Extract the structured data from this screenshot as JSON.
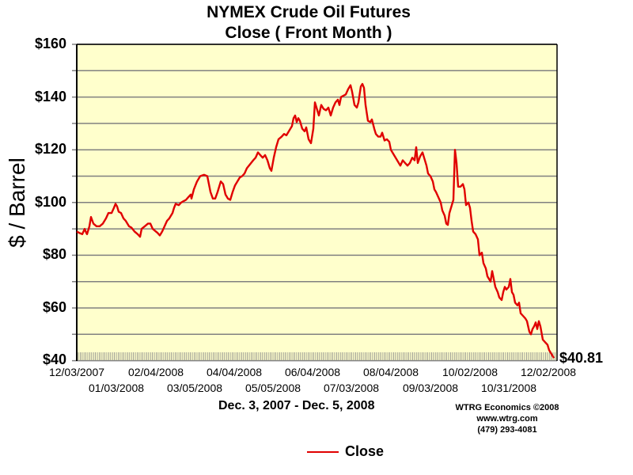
{
  "header": {
    "title_line1": "NYMEX Crude Oil Futures",
    "title_line2": "Close ( Front Month )"
  },
  "axes": {
    "ylabel": "$ / Barrel",
    "yticks": [
      "$160",
      "$140",
      "$120",
      "$100",
      "$80",
      "$60",
      "$40"
    ],
    "xticks_row1": [
      "12/03/2007",
      "02/04/2008",
      "04/04/2008",
      "06/04/2008",
      "08/04/2008",
      "10/02/2008",
      "12/02/2008"
    ],
    "xticks_row2": [
      "01/03/2008",
      "03/05/2008",
      "05/05/2008",
      "07/03/2008",
      "09/03/2008",
      "10/31/2008"
    ],
    "xlabel": "Dec. 3, 2007 - Dec. 5, 2008"
  },
  "last_value": "$40.81",
  "credit": {
    "line1": "WTRG Economics  ©2008",
    "line2": "www.wtrg.com",
    "line3": "(479) 293-4081"
  },
  "legend": {
    "series_label": "Close",
    "color": "#e00000"
  },
  "colors": {
    "plot_bg": "#ffffcc",
    "grid": "#808080",
    "line": "#e00000"
  },
  "chart_data": {
    "type": "line",
    "title": "NYMEX Crude Oil Futures - Close ( Front Month )",
    "xlabel": "Dec. 3, 2007 - Dec. 5, 2008",
    "ylabel": "$ / Barrel",
    "ylim": [
      40,
      160
    ],
    "ytick_step": 10,
    "grid": true,
    "legend_position": "bottom",
    "x": [
      "12/03/2007",
      "01/03/2008",
      "02/04/2008",
      "03/05/2008",
      "04/04/2008",
      "05/05/2008",
      "06/04/2008",
      "07/03/2008",
      "08/04/2008",
      "09/03/2008",
      "10/02/2008",
      "10/31/2008",
      "12/02/2008",
      "12/05/2008"
    ],
    "series": [
      {
        "name": "Close",
        "values": [
          89,
          99.5,
          89,
          100.5,
          104,
          119,
          127,
          145,
          125,
          110,
          93.5,
          67.5,
          47,
          40.81
        ]
      }
    ],
    "annotations": [
      "$40.81"
    ],
    "path_points": [
      [
        97,
        89
      ],
      [
        100,
        88.5
      ],
      [
        104,
        88
      ],
      [
        107,
        90
      ],
      [
        109,
        88.5
      ],
      [
        110,
        88
      ],
      [
        113,
        91
      ],
      [
        115,
        94.5
      ],
      [
        118,
        92
      ],
      [
        122,
        91
      ],
      [
        126,
        91
      ],
      [
        130,
        92
      ],
      [
        134,
        94
      ],
      [
        137,
        96
      ],
      [
        141,
        96
      ],
      [
        144,
        98
      ],
      [
        146,
        99.5
      ],
      [
        148,
        98.5
      ],
      [
        150,
        96.5
      ],
      [
        153,
        96
      ],
      [
        156,
        94
      ],
      [
        159,
        93
      ],
      [
        163,
        91
      ],
      [
        166,
        90.5
      ],
      [
        170,
        89
      ],
      [
        174,
        88
      ],
      [
        177,
        87
      ],
      [
        179,
        90
      ],
      [
        183,
        91
      ],
      [
        187,
        92
      ],
      [
        190,
        92
      ],
      [
        193,
        90
      ],
      [
        197,
        89
      ],
      [
        199,
        88.5
      ],
      [
        202,
        87.5
      ],
      [
        205,
        89
      ],
      [
        208,
        91
      ],
      [
        211,
        93
      ],
      [
        214,
        94
      ],
      [
        218,
        96
      ],
      [
        220,
        98
      ],
      [
        222,
        99.5
      ],
      [
        226,
        99
      ],
      [
        229,
        100
      ],
      [
        232,
        100.5
      ],
      [
        235,
        101
      ],
      [
        238,
        102
      ],
      [
        241,
        103
      ],
      [
        242,
        101.5
      ],
      [
        245,
        105
      ],
      [
        249,
        108
      ],
      [
        253,
        110
      ],
      [
        258,
        110.5
      ],
      [
        262,
        110
      ],
      [
        264,
        107
      ],
      [
        266,
        104
      ],
      [
        269,
        101.5
      ],
      [
        272,
        101.5
      ],
      [
        275,
        104
      ],
      [
        279,
        108
      ],
      [
        282,
        107
      ],
      [
        285,
        103
      ],
      [
        288,
        101.5
      ],
      [
        291,
        101
      ],
      [
        294,
        104
      ],
      [
        297,
        106.5
      ],
      [
        300,
        108
      ],
      [
        303,
        109.5
      ],
      [
        306,
        110
      ],
      [
        309,
        111
      ],
      [
        312,
        113
      ],
      [
        316,
        114.5
      ],
      [
        320,
        116
      ],
      [
        323,
        117
      ],
      [
        326,
        119
      ],
      [
        329,
        118
      ],
      [
        332,
        117
      ],
      [
        335,
        118
      ],
      [
        338,
        116
      ],
      [
        341,
        113
      ],
      [
        343,
        112
      ],
      [
        346,
        117
      ],
      [
        349,
        121
      ],
      [
        352,
        124
      ],
      [
        356,
        125
      ],
      [
        359,
        126
      ],
      [
        362,
        125.5
      ],
      [
        365,
        127
      ],
      [
        369,
        129
      ],
      [
        371,
        132
      ],
      [
        373,
        133
      ],
      [
        375,
        130.5
      ],
      [
        377,
        132
      ],
      [
        379,
        131
      ],
      [
        382,
        128
      ],
      [
        385,
        127
      ],
      [
        387,
        128.5
      ],
      [
        390,
        124
      ],
      [
        393,
        122.5
      ],
      [
        396,
        128
      ],
      [
        398,
        138
      ],
      [
        400,
        136
      ],
      [
        403,
        133
      ],
      [
        406,
        137
      ],
      [
        409,
        135.5
      ],
      [
        412,
        135
      ],
      [
        415,
        136
      ],
      [
        418,
        133
      ],
      [
        421,
        136
      ],
      [
        424,
        138
      ],
      [
        427,
        139
      ],
      [
        429,
        137
      ],
      [
        431,
        140
      ],
      [
        434,
        140.5
      ],
      [
        437,
        141
      ],
      [
        440,
        143
      ],
      [
        443,
        144.5
      ],
      [
        445,
        142
      ],
      [
        448,
        137
      ],
      [
        451,
        136
      ],
      [
        453,
        138
      ],
      [
        456,
        144
      ],
      [
        458,
        145
      ],
      [
        460,
        143.5
      ],
      [
        462,
        137
      ],
      [
        465,
        131
      ],
      [
        468,
        130.5
      ],
      [
        470,
        131.5
      ],
      [
        473,
        128
      ],
      [
        475,
        126
      ],
      [
        478,
        125
      ],
      [
        481,
        125
      ],
      [
        483,
        126.5
      ],
      [
        486,
        123.5
      ],
      [
        489,
        124
      ],
      [
        492,
        123
      ],
      [
        494,
        120
      ],
      [
        497,
        118.5
      ],
      [
        500,
        117
      ],
      [
        503,
        115.5
      ],
      [
        506,
        114
      ],
      [
        509,
        116
      ],
      [
        512,
        115
      ],
      [
        515,
        114
      ],
      [
        518,
        115
      ],
      [
        521,
        117
      ],
      [
        524,
        116
      ],
      [
        526,
        121
      ],
      [
        528,
        115
      ],
      [
        531,
        117.5
      ],
      [
        534,
        119
      ],
      [
        536,
        117
      ],
      [
        539,
        114
      ],
      [
        541,
        111
      ],
      [
        544,
        110
      ],
      [
        547,
        108
      ],
      [
        549,
        105
      ],
      [
        551,
        104
      ],
      [
        554,
        102
      ],
      [
        557,
        100
      ],
      [
        559,
        97
      ],
      [
        562,
        95
      ],
      [
        564,
        92
      ],
      [
        566,
        91.5
      ],
      [
        568,
        96
      ],
      [
        571,
        99
      ],
      [
        573,
        101
      ],
      [
        575,
        120
      ],
      [
        577,
        115
      ],
      [
        579,
        106
      ],
      [
        582,
        106
      ],
      [
        585,
        107
      ],
      [
        587,
        105
      ],
      [
        589,
        99
      ],
      [
        592,
        100
      ],
      [
        594,
        98
      ],
      [
        596,
        93
      ],
      [
        598,
        89
      ],
      [
        601,
        88
      ],
      [
        604,
        86
      ],
      [
        606,
        80
      ],
      [
        609,
        81
      ],
      [
        611,
        77
      ],
      [
        614,
        75
      ],
      [
        616,
        72
      ],
      [
        618,
        71
      ],
      [
        620,
        70
      ],
      [
        622,
        74
      ],
      [
        624,
        71
      ],
      [
        626,
        68
      ],
      [
        629,
        66
      ],
      [
        631,
        64
      ],
      [
        634,
        63
      ],
      [
        636,
        66
      ],
      [
        638,
        68
      ],
      [
        640,
        67
      ],
      [
        643,
        68
      ],
      [
        645,
        71
      ],
      [
        647,
        66
      ],
      [
        649,
        65
      ],
      [
        651,
        62
      ],
      [
        654,
        61
      ],
      [
        656,
        62
      ],
      [
        658,
        58
      ],
      [
        661,
        57
      ],
      [
        664,
        56
      ],
      [
        666,
        55
      ],
      [
        669,
        51
      ],
      [
        671,
        50
      ],
      [
        673,
        52
      ],
      [
        675,
        53
      ],
      [
        677,
        54.5
      ],
      [
        679,
        52
      ],
      [
        681,
        55
      ],
      [
        683,
        53
      ],
      [
        686,
        48
      ],
      [
        689,
        47
      ],
      [
        692,
        46
      ],
      [
        694,
        44
      ],
      [
        697,
        42.5
      ],
      [
        700,
        41
      ]
    ]
  }
}
